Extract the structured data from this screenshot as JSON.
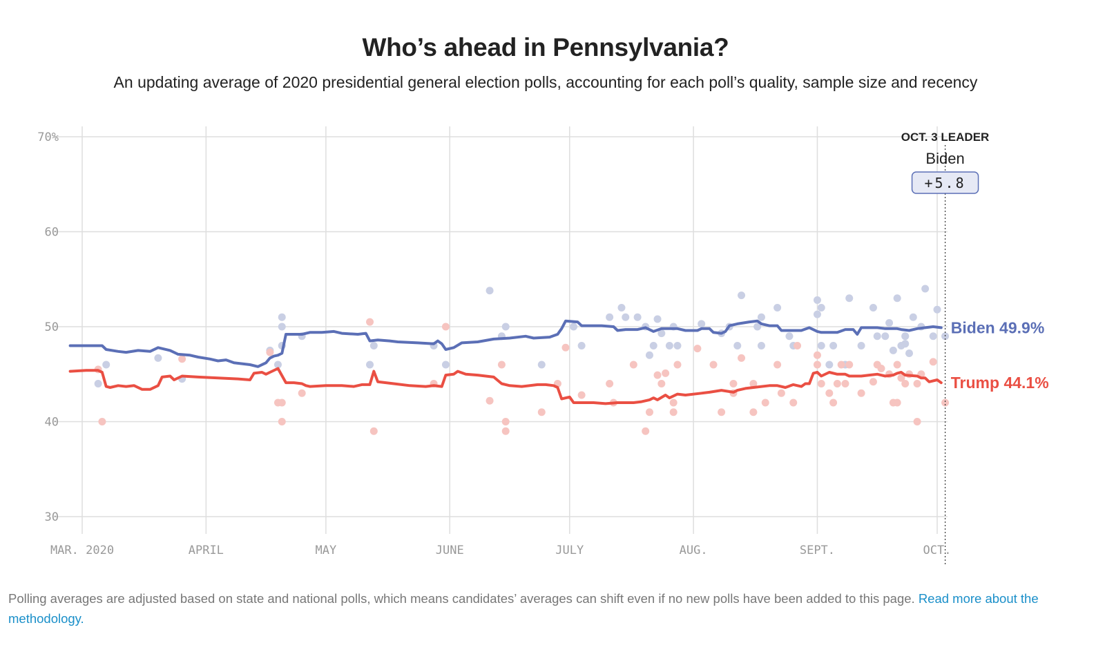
{
  "title": "Who’s ahead in Pennsylvania?",
  "subtitle": "An updating average of 2020 presidential general election polls, accounting for each poll’s quality, sample size and recency",
  "footnote": {
    "text": "Polling averages are adjusted based on state and national polls, which means candidates’ averages can shift even if no new polls have been added to this page.",
    "link_text": "Read more about the methodology."
  },
  "colors": {
    "biden": "#5b6fb6",
    "trump": "#ea4f43",
    "biden_poll": "#c9cfe4",
    "trump_poll": "#f6c4c0",
    "grid": "#dedede"
  },
  "chart_data": {
    "type": "line",
    "title": "Who’s ahead in Pennsylvania?",
    "xlabel": "",
    "ylabel": "",
    "ylim": [
      30,
      70
    ],
    "xlim": [
      -2,
      214
    ],
    "y_ticks": [
      {
        "value": 70,
        "label": "70%"
      },
      {
        "value": 60,
        "label": "60"
      },
      {
        "value": 50,
        "label": "50"
      },
      {
        "value": 40,
        "label": "40"
      },
      {
        "value": 30,
        "label": "30"
      }
    ],
    "x_ticks": [
      {
        "day": 1,
        "label": "MAR. 2020"
      },
      {
        "day": 32,
        "label": "APRIL"
      },
      {
        "day": 62,
        "label": "MAY"
      },
      {
        "day": 93,
        "label": "JUNE"
      },
      {
        "day": 123,
        "label": "JULY"
      },
      {
        "day": 154,
        "label": "AUG."
      },
      {
        "day": 185,
        "label": "SEPT."
      },
      {
        "day": 215,
        "label": "OCT."
      }
    ],
    "leader": {
      "heading": "OCT. 3 LEADER",
      "name": "Biden",
      "margin": "+5.8",
      "day": 217
    },
    "series": [
      {
        "name": "Biden",
        "end_label": "Biden 49.9%",
        "points": [
          [
            -2,
            48
          ],
          [
            2,
            48
          ],
          [
            6,
            48
          ],
          [
            7,
            47.6
          ],
          [
            10,
            47.4
          ],
          [
            12,
            47.3
          ],
          [
            15,
            47.5
          ],
          [
            18,
            47.4
          ],
          [
            20,
            47.8
          ],
          [
            23,
            47.5
          ],
          [
            25,
            47.1
          ],
          [
            28,
            47
          ],
          [
            30,
            46.8
          ],
          [
            33,
            46.6
          ],
          [
            35,
            46.4
          ],
          [
            37,
            46.5
          ],
          [
            39,
            46.2
          ],
          [
            41,
            46.1
          ],
          [
            43,
            46
          ],
          [
            45,
            45.8
          ],
          [
            47,
            46.2
          ],
          [
            48,
            46.7
          ],
          [
            49,
            46.9
          ],
          [
            50,
            47
          ],
          [
            51,
            47.2
          ],
          [
            52,
            49.2
          ],
          [
            56,
            49.2
          ],
          [
            58,
            49.4
          ],
          [
            61,
            49.4
          ],
          [
            64,
            49.5
          ],
          [
            66,
            49.3
          ],
          [
            70,
            49.2
          ],
          [
            72,
            49.3
          ],
          [
            73,
            48.5
          ],
          [
            75,
            48.6
          ],
          [
            78,
            48.5
          ],
          [
            80,
            48.4
          ],
          [
            85,
            48.3
          ],
          [
            89,
            48.2
          ],
          [
            90,
            48.5
          ],
          [
            91,
            48.2
          ],
          [
            92,
            47.6
          ],
          [
            94,
            47.8
          ],
          [
            96,
            48.3
          ],
          [
            100,
            48.4
          ],
          [
            104,
            48.7
          ],
          [
            108,
            48.8
          ],
          [
            112,
            49
          ],
          [
            114,
            48.8
          ],
          [
            118,
            48.9
          ],
          [
            120,
            49.2
          ],
          [
            121,
            49.8
          ],
          [
            122,
            50.6
          ],
          [
            125,
            50.5
          ],
          [
            126,
            50.1
          ],
          [
            131,
            50.1
          ],
          [
            134,
            50
          ],
          [
            135,
            49.6
          ],
          [
            137,
            49.7
          ],
          [
            140,
            49.7
          ],
          [
            142,
            49.9
          ],
          [
            144,
            49.5
          ],
          [
            146,
            49.8
          ],
          [
            150,
            49.8
          ],
          [
            152,
            49.6
          ],
          [
            155,
            49.6
          ],
          [
            156,
            49.8
          ],
          [
            158,
            49.8
          ],
          [
            159,
            49.4
          ],
          [
            161,
            49.3
          ],
          [
            162,
            49.5
          ],
          [
            163,
            50.1
          ],
          [
            165,
            50.3
          ],
          [
            168,
            50.5
          ],
          [
            170,
            50.6
          ],
          [
            171,
            50.3
          ],
          [
            173,
            50.1
          ],
          [
            175,
            50.1
          ],
          [
            176,
            49.6
          ],
          [
            181,
            49.6
          ],
          [
            183,
            49.9
          ],
          [
            185,
            49.5
          ],
          [
            186,
            49.4
          ],
          [
            190,
            49.4
          ],
          [
            192,
            49.7
          ],
          [
            194,
            49.7
          ],
          [
            195,
            49.2
          ],
          [
            196,
            49.9
          ],
          [
            200,
            49.9
          ],
          [
            202,
            49.8
          ],
          [
            205,
            49.8
          ],
          [
            206,
            49.7
          ],
          [
            208,
            49.6
          ],
          [
            210,
            49.8
          ],
          [
            212,
            49.9
          ],
          [
            214,
            50
          ],
          [
            216,
            49.9
          ]
        ]
      },
      {
        "name": "Trump",
        "end_label": "Trump 44.1%",
        "points": [
          [
            -2,
            45.3
          ],
          [
            2,
            45.4
          ],
          [
            5,
            45.4
          ],
          [
            6,
            45.2
          ],
          [
            7,
            43.7
          ],
          [
            8,
            43.6
          ],
          [
            10,
            43.8
          ],
          [
            12,
            43.7
          ],
          [
            14,
            43.8
          ],
          [
            16,
            43.4
          ],
          [
            18,
            43.4
          ],
          [
            20,
            43.8
          ],
          [
            21,
            44.7
          ],
          [
            23,
            44.8
          ],
          [
            24,
            44.4
          ],
          [
            26,
            44.8
          ],
          [
            30,
            44.7
          ],
          [
            35,
            44.6
          ],
          [
            40,
            44.5
          ],
          [
            43,
            44.4
          ],
          [
            44,
            45.1
          ],
          [
            46,
            45.2
          ],
          [
            47,
            45
          ],
          [
            48,
            45.2
          ],
          [
            50,
            45.6
          ],
          [
            52,
            44.1
          ],
          [
            54,
            44.1
          ],
          [
            56,
            44
          ],
          [
            57,
            43.8
          ],
          [
            58,
            43.7
          ],
          [
            62,
            43.8
          ],
          [
            66,
            43.8
          ],
          [
            69,
            43.7
          ],
          [
            71,
            43.9
          ],
          [
            73,
            43.9
          ],
          [
            74,
            45.3
          ],
          [
            75,
            44.2
          ],
          [
            77,
            44.1
          ],
          [
            79,
            44
          ],
          [
            83,
            43.8
          ],
          [
            87,
            43.7
          ],
          [
            89,
            43.8
          ],
          [
            91,
            43.7
          ],
          [
            92,
            44.9
          ],
          [
            94,
            45
          ],
          [
            95,
            45.3
          ],
          [
            97,
            45
          ],
          [
            100,
            44.9
          ],
          [
            104,
            44.7
          ],
          [
            106,
            44
          ],
          [
            108,
            43.8
          ],
          [
            111,
            43.7
          ],
          [
            115,
            43.9
          ],
          [
            117,
            43.9
          ],
          [
            119,
            43.8
          ],
          [
            120,
            43.6
          ],
          [
            121,
            42.4
          ],
          [
            123,
            42.6
          ],
          [
            124,
            42
          ],
          [
            129,
            42
          ],
          [
            132,
            41.9
          ],
          [
            135,
            42
          ],
          [
            139,
            42
          ],
          [
            141,
            42.1
          ],
          [
            143,
            42.3
          ],
          [
            144,
            42.5
          ],
          [
            145,
            42.3
          ],
          [
            147,
            42.8
          ],
          [
            148,
            42.5
          ],
          [
            150,
            42.9
          ],
          [
            152,
            42.8
          ],
          [
            156,
            43
          ],
          [
            158,
            43.1
          ],
          [
            161,
            43.3
          ],
          [
            164,
            43.1
          ],
          [
            165,
            43.3
          ],
          [
            167,
            43.5
          ],
          [
            169,
            43.6
          ],
          [
            173,
            43.8
          ],
          [
            175,
            43.8
          ],
          [
            177,
            43.6
          ],
          [
            179,
            43.9
          ],
          [
            181,
            43.7
          ],
          [
            182,
            44
          ],
          [
            183,
            44
          ],
          [
            184,
            45.1
          ],
          [
            185,
            45.2
          ],
          [
            186,
            44.8
          ],
          [
            188,
            45.2
          ],
          [
            190,
            45
          ],
          [
            192,
            45
          ],
          [
            193,
            44.8
          ],
          [
            196,
            44.8
          ],
          [
            198,
            44.9
          ],
          [
            200,
            45
          ],
          [
            202,
            44.8
          ],
          [
            204,
            44.9
          ],
          [
            205,
            45.1
          ],
          [
            206,
            45.2
          ],
          [
            207,
            44.9
          ],
          [
            210,
            44.8
          ],
          [
            211,
            44.6
          ],
          [
            212,
            44.6
          ],
          [
            213,
            44.2
          ],
          [
            215,
            44.4
          ],
          [
            216,
            44.1
          ]
        ]
      }
    ],
    "biden_polls": [
      [
        5,
        44
      ],
      [
        7,
        46
      ],
      [
        20,
        46.7
      ],
      [
        26,
        44.5
      ],
      [
        48,
        47.5
      ],
      [
        50,
        46
      ],
      [
        51,
        48
      ],
      [
        51,
        51
      ],
      [
        51,
        50
      ],
      [
        56,
        49
      ],
      [
        73,
        46
      ],
      [
        74,
        48
      ],
      [
        89,
        48
      ],
      [
        92,
        46
      ],
      [
        103,
        53.8
      ],
      [
        106,
        49
      ],
      [
        107,
        50
      ],
      [
        116,
        46
      ],
      [
        124,
        50
      ],
      [
        126,
        48
      ],
      [
        133,
        51
      ],
      [
        136,
        52
      ],
      [
        137,
        51
      ],
      [
        140,
        51
      ],
      [
        142,
        50
      ],
      [
        143,
        47
      ],
      [
        144,
        48
      ],
      [
        145,
        50.8
      ],
      [
        146,
        49.3
      ],
      [
        148,
        48
      ],
      [
        149,
        50
      ],
      [
        150,
        48
      ],
      [
        156,
        50.3
      ],
      [
        161,
        49.3
      ],
      [
        163,
        50
      ],
      [
        165,
        48
      ],
      [
        166,
        53.3
      ],
      [
        170,
        50
      ],
      [
        171,
        51
      ],
      [
        171,
        48
      ],
      [
        175,
        52
      ],
      [
        178,
        49
      ],
      [
        179,
        48
      ],
      [
        185,
        52.8
      ],
      [
        185,
        51.3
      ],
      [
        186,
        52
      ],
      [
        186,
        48
      ],
      [
        188,
        46
      ],
      [
        189,
        48
      ],
      [
        192,
        46
      ],
      [
        193,
        53
      ],
      [
        196,
        48
      ],
      [
        199,
        52
      ],
      [
        200,
        49
      ],
      [
        202,
        49
      ],
      [
        203,
        50.4
      ],
      [
        204,
        47.5
      ],
      [
        205,
        53
      ],
      [
        206,
        48
      ],
      [
        207,
        49
      ],
      [
        207,
        48.2
      ],
      [
        207,
        49
      ],
      [
        208,
        47.2
      ],
      [
        209,
        51
      ],
      [
        211,
        50
      ],
      [
        212,
        54
      ],
      [
        214,
        49
      ],
      [
        215,
        51.8
      ],
      [
        217,
        49
      ]
    ],
    "trump_polls": [
      [
        5,
        45.5
      ],
      [
        6,
        40
      ],
      [
        26,
        46.6
      ],
      [
        48,
        47.3
      ],
      [
        50,
        42
      ],
      [
        51,
        42
      ],
      [
        51,
        40
      ],
      [
        56,
        43
      ],
      [
        73,
        50.5
      ],
      [
        74,
        39
      ],
      [
        89,
        44
      ],
      [
        92,
        50
      ],
      [
        103,
        42.2
      ],
      [
        106,
        46
      ],
      [
        107,
        40
      ],
      [
        107,
        39
      ],
      [
        116,
        41
      ],
      [
        120,
        44
      ],
      [
        122,
        47.8
      ],
      [
        126,
        42.8
      ],
      [
        133,
        44
      ],
      [
        134,
        42
      ],
      [
        139,
        46
      ],
      [
        142,
        39
      ],
      [
        143,
        41
      ],
      [
        145,
        44.9
      ],
      [
        146,
        44
      ],
      [
        147,
        45.1
      ],
      [
        149,
        42
      ],
      [
        149,
        41
      ],
      [
        150,
        46
      ],
      [
        155,
        47.7
      ],
      [
        159,
        46
      ],
      [
        161,
        41
      ],
      [
        164,
        43
      ],
      [
        164,
        44
      ],
      [
        166,
        46.7
      ],
      [
        169,
        41
      ],
      [
        169,
        44
      ],
      [
        172,
        42
      ],
      [
        175,
        46
      ],
      [
        176,
        43
      ],
      [
        179,
        42
      ],
      [
        180,
        48
      ],
      [
        185,
        47
      ],
      [
        185,
        46
      ],
      [
        186,
        44
      ],
      [
        188,
        43
      ],
      [
        189,
        42
      ],
      [
        190,
        44
      ],
      [
        191,
        46
      ],
      [
        192,
        44
      ],
      [
        193,
        46
      ],
      [
        196,
        43
      ],
      [
        199,
        44.2
      ],
      [
        200,
        46
      ],
      [
        201,
        45.6
      ],
      [
        203,
        45
      ],
      [
        204,
        42
      ],
      [
        205,
        42
      ],
      [
        205,
        46
      ],
      [
        206,
        44.6
      ],
      [
        207,
        44
      ],
      [
        208,
        45
      ],
      [
        210,
        44
      ],
      [
        210,
        40
      ],
      [
        211,
        45
      ],
      [
        214,
        46.3
      ],
      [
        217,
        42
      ]
    ]
  }
}
